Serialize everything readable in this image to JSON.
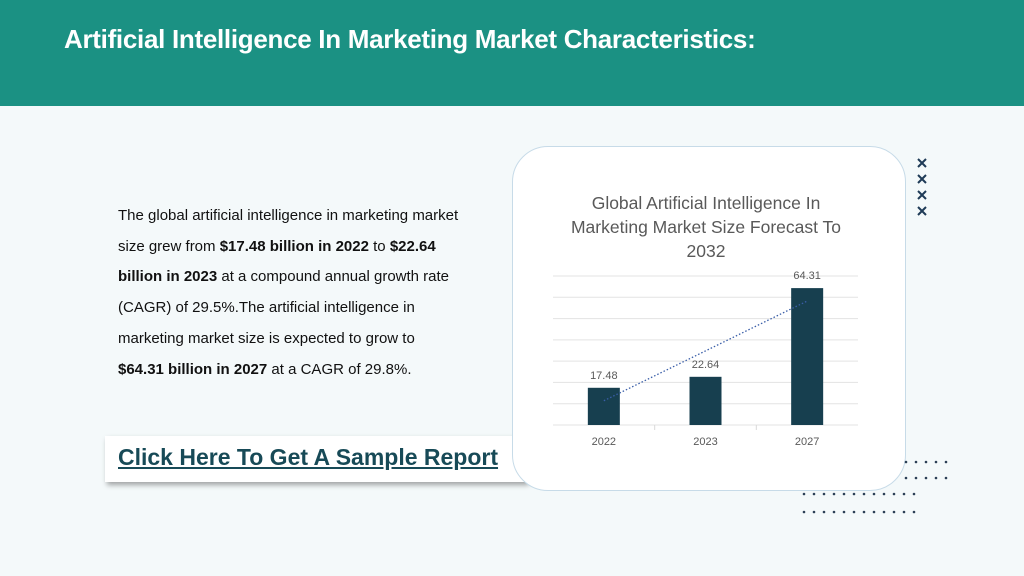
{
  "header": {
    "title": "Artificial Intelligence In Marketing Market Characteristics:"
  },
  "body": {
    "segments": [
      {
        "text": "The global artificial intelligence in marketing market size grew from ",
        "bold": false
      },
      {
        "text": "$17.48 billion in 2022",
        "bold": true
      },
      {
        "text": " to ",
        "bold": false
      },
      {
        "text": "$22.64 billion in 2023",
        "bold": true
      },
      {
        "text": " at a compound annual growth rate (CAGR) of 29.5%.The artificial intelligence in marketing market size is expected to grow to ",
        "bold": false
      },
      {
        "text": "$64.31 billion in 2027",
        "bold": true
      },
      {
        "text": " at a CAGR of 29.8%.",
        "bold": false
      }
    ]
  },
  "button": {
    "label": "Click Here To Get A Sample Report"
  },
  "chart_data": {
    "type": "bar",
    "title": "Global Artificial Intelligence In Marketing Market Size Forecast To 2032",
    "categories": [
      "2022",
      "2023",
      "2027"
    ],
    "values": [
      17.48,
      22.64,
      64.31
    ],
    "color": "#173f4f",
    "ylim": [
      0,
      70
    ],
    "yticks": [
      0,
      10,
      20,
      30,
      40,
      50,
      60,
      70
    ],
    "grid": true,
    "trendline": true,
    "trendline_color": "#3a5ea8"
  }
}
